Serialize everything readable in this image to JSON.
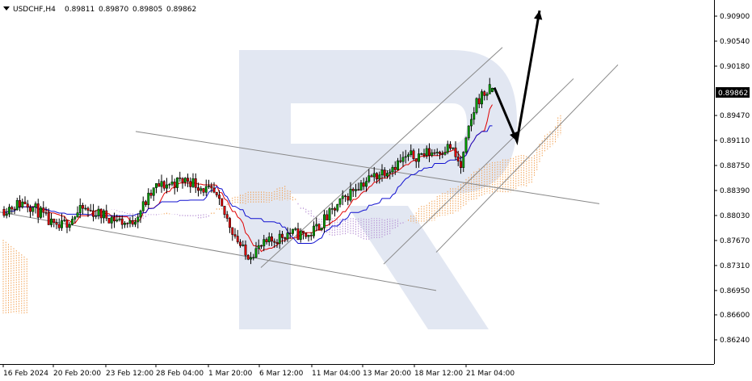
{
  "header": {
    "symbol": "USDCHF,H4",
    "open": "0.89811",
    "high": "0.89870",
    "low": "0.89805",
    "close": "0.89862"
  },
  "chart_data": {
    "type": "candlestick",
    "symbol": "USDCHF",
    "timeframe": "H4",
    "y_ticks": [
      "0.90900",
      "0.90540",
      "0.90180",
      "0.89470",
      "0.89110",
      "0.88750",
      "0.88390",
      "0.88030",
      "0.87670",
      "0.87310",
      "0.86950",
      "0.86600",
      "0.86240"
    ],
    "ylim": [
      0.8624,
      0.91
    ],
    "current_price": "0.89862",
    "x_ticks": [
      "16 Feb 2024",
      "20 Feb 20:00",
      "23 Feb 12:00",
      "28 Feb 04:00",
      "1 Mar 20:00",
      "6 Mar 12:00",
      "11 Mar 04:00",
      "13 Mar 20:00",
      "18 Mar 12:00",
      "21 Mar 04:00"
    ],
    "indicators": [
      "Ichimoku Kinko Hyo (Tenkan-sen red, Kijun-sen blue, cloud orange/violet)"
    ],
    "colors": {
      "bull": "#00a000",
      "bear": "#e00000",
      "tenkan": "#e00000",
      "kijun": "#1010d0",
      "cloud_bull": "#f2a255",
      "cloud_bear": "#b48cd2",
      "trendline": "#888888",
      "arrow": "#000000",
      "watermark": "#dde3f0"
    },
    "anchors": [
      [
        0,
        0.8812
      ],
      [
        8,
        0.8823
      ],
      [
        14,
        0.8806
      ],
      [
        20,
        0.8782
      ],
      [
        30,
        0.8812
      ],
      [
        40,
        0.8801
      ],
      [
        48,
        0.879
      ],
      [
        58,
        0.8844
      ],
      [
        70,
        0.8855
      ],
      [
        80,
        0.8833
      ],
      [
        86,
        0.879
      ],
      [
        92,
        0.8745
      ],
      [
        100,
        0.8762
      ],
      [
        108,
        0.8778
      ],
      [
        116,
        0.8774
      ],
      [
        124,
        0.8804
      ],
      [
        134,
        0.8845
      ],
      [
        144,
        0.8866
      ],
      [
        154,
        0.8887
      ],
      [
        164,
        0.8895
      ],
      [
        170,
        0.8902
      ],
      [
        174,
        0.8872
      ],
      [
        177,
        0.8925
      ],
      [
        180,
        0.8968
      ],
      [
        184,
        0.8982
      ],
      [
        186,
        0.8984
      ]
    ],
    "trendlines": [
      {
        "from": [
          "17 Feb",
          0.8924
        ],
        "to": [
          "19 Mar",
          0.882
        ]
      },
      {
        "from": [
          "14 Feb",
          0.881
        ],
        "to": [
          "13 Mar",
          0.8695
        ]
      },
      {
        "from": [
          "6 Mar",
          0.8728
        ],
        "to": [
          "21 Mar",
          0.9045
        ]
      },
      {
        "from": [
          "11 Mar",
          0.8733
        ],
        "to": [
          "23 Mar",
          0.9
        ]
      },
      {
        "from": [
          "13 Mar",
          0.875
        ],
        "to": [
          "24 Mar",
          0.902
        ]
      }
    ],
    "forecast": {
      "from": 0.8987,
      "down_to": 0.891,
      "up_to": 0.9098
    }
  }
}
